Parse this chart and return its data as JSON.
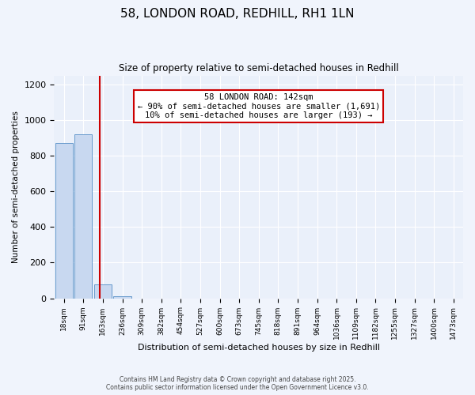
{
  "title_line1": "58, LONDON ROAD, REDHILL, RH1 1LN",
  "title_line2": "Size of property relative to semi-detached houses in Redhill",
  "xlabel": "Distribution of semi-detached houses by size in Redhill",
  "ylabel": "Number of semi-detached properties",
  "bar_labels": [
    "18sqm",
    "91sqm",
    "163sqm",
    "236sqm",
    "309sqm",
    "382sqm",
    "454sqm",
    "527sqm",
    "600sqm",
    "673sqm",
    "745sqm",
    "818sqm",
    "891sqm",
    "964sqm",
    "1036sqm",
    "1109sqm",
    "1182sqm",
    "1255sqm",
    "1327sqm",
    "1400sqm",
    "1473sqm"
  ],
  "bar_values": [
    870,
    920,
    80,
    10,
    0,
    0,
    0,
    0,
    0,
    0,
    0,
    0,
    0,
    0,
    0,
    0,
    0,
    0,
    0,
    0,
    0
  ],
  "bar_color": "#c8d8f0",
  "bar_edge_color": "#6699cc",
  "vline_color": "#cc0000",
  "annotation_title": "58 LONDON ROAD: 142sqm",
  "annotation_line2": "← 90% of semi-detached houses are smaller (1,691)",
  "annotation_line3": "10% of semi-detached houses are larger (193) →",
  "annotation_box_color": "#ffffff",
  "annotation_box_edge": "#cc0000",
  "ylim": [
    0,
    1250
  ],
  "yticks": [
    0,
    200,
    400,
    600,
    800,
    1000,
    1200
  ],
  "bg_color": "#eaf0fa",
  "fig_bg_color": "#f0f4fc",
  "footer_line1": "Contains HM Land Registry data © Crown copyright and database right 2025.",
  "footer_line2": "Contains public sector information licensed under the Open Government Licence v3.0."
}
